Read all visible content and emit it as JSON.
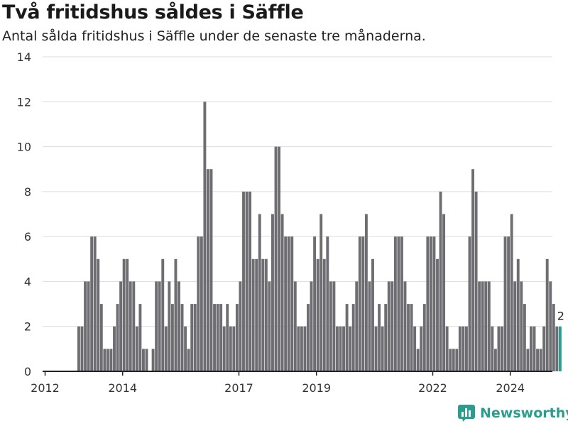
{
  "title": "Två fritidshus såldes i Säffle",
  "subtitle": "Antal sålda fritidshus i Säffle under de senaste tre månaderna.",
  "brand": "Newsworthy",
  "colors": {
    "bar": "#6e6d72",
    "highlight": "#2a9d8f",
    "grid": "#dcdcdc",
    "axis": "#222222"
  },
  "chart_data": {
    "type": "bar",
    "title": "Två fritidshus såldes i Säffle",
    "subtitle": "Antal sålda fritidshus i Säffle under de senaste tre månaderna.",
    "xlabel": "",
    "ylabel": "",
    "ylim": [
      0,
      14
    ],
    "yticks": [
      0,
      2,
      4,
      6,
      8,
      10,
      12,
      14
    ],
    "xtick_labels": [
      "2012",
      "2014",
      "2017",
      "2019",
      "2022",
      "2024"
    ],
    "xtick_months": [
      "2012-01",
      "2014-01",
      "2017-01",
      "2019-01",
      "2022-01",
      "2024-01"
    ],
    "grid": true,
    "start_month": "2012-01",
    "last_value_label": "2",
    "values": [
      0,
      0,
      0,
      0,
      0,
      0,
      0,
      0,
      0,
      0,
      2,
      2,
      4,
      4,
      6,
      6,
      5,
      3,
      1,
      1,
      1,
      2,
      3,
      4,
      5,
      5,
      4,
      4,
      2,
      3,
      1,
      1,
      0,
      1,
      4,
      4,
      5,
      2,
      4,
      3,
      5,
      4,
      3,
      2,
      1,
      3,
      3,
      6,
      6,
      12,
      9,
      9,
      3,
      3,
      3,
      2,
      3,
      2,
      2,
      3,
      4,
      8,
      8,
      8,
      5,
      5,
      7,
      5,
      5,
      4,
      7,
      10,
      10,
      7,
      6,
      6,
      6,
      4,
      2,
      2,
      2,
      3,
      4,
      6,
      5,
      7,
      5,
      6,
      4,
      4,
      2,
      2,
      2,
      3,
      2,
      3,
      4,
      6,
      6,
      7,
      4,
      5,
      2,
      3,
      2,
      3,
      4,
      4,
      6,
      6,
      6,
      4,
      3,
      3,
      2,
      1,
      2,
      3,
      6,
      6,
      6,
      5,
      8,
      7,
      2,
      1,
      1,
      1,
      2,
      2,
      2,
      6,
      9,
      8,
      4,
      4,
      4,
      4,
      2,
      1,
      2,
      2,
      6,
      6,
      7,
      4,
      5,
      4,
      3,
      1,
      2,
      2,
      1,
      1,
      2,
      5,
      4,
      3,
      2,
      2
    ]
  }
}
